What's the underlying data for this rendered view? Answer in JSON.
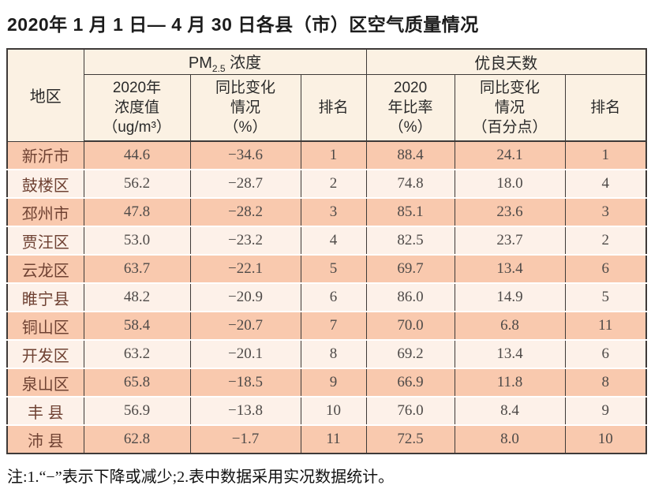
{
  "title": "2020年 1 月 1 日— 4 月 30 日各县（市）区空气质量情况",
  "table": {
    "col_region": "地区",
    "group_pm25": {
      "prefix": "PM",
      "sub": "2.5",
      "suffix": " 浓度"
    },
    "group_days": "优良天数",
    "sub_headers": [
      "2020年\n浓度值\n（ug/m³）",
      "同比变化\n情况\n（%）",
      "排名",
      "2020\n年比率\n（%）",
      "同比变化\n情况\n（百分点）",
      "排名"
    ],
    "rows": [
      {
        "region": "新沂市",
        "pm25_value": "44.6",
        "pm25_change": "−34.6",
        "pm25_rank": "1",
        "ratio": "88.4",
        "ratio_change": "24.1",
        "ratio_rank": "1"
      },
      {
        "region": "鼓楼区",
        "pm25_value": "56.2",
        "pm25_change": "−28.7",
        "pm25_rank": "2",
        "ratio": "74.8",
        "ratio_change": "18.0",
        "ratio_rank": "4"
      },
      {
        "region": "邳州市",
        "pm25_value": "47.8",
        "pm25_change": "−28.2",
        "pm25_rank": "3",
        "ratio": "85.1",
        "ratio_change": "23.6",
        "ratio_rank": "3"
      },
      {
        "region": "贾汪区",
        "pm25_value": "53.0",
        "pm25_change": "−23.2",
        "pm25_rank": "4",
        "ratio": "82.5",
        "ratio_change": "23.7",
        "ratio_rank": "2"
      },
      {
        "region": "云龙区",
        "pm25_value": "63.7",
        "pm25_change": "−22.1",
        "pm25_rank": "5",
        "ratio": "69.7",
        "ratio_change": "13.4",
        "ratio_rank": "6"
      },
      {
        "region": "睢宁县",
        "pm25_value": "48.2",
        "pm25_change": "−20.9",
        "pm25_rank": "6",
        "ratio": "86.0",
        "ratio_change": "14.9",
        "ratio_rank": "5"
      },
      {
        "region": "铜山区",
        "pm25_value": "58.4",
        "pm25_change": "−20.7",
        "pm25_rank": "7",
        "ratio": "70.0",
        "ratio_change": "6.8",
        "ratio_rank": "11"
      },
      {
        "region": "开发区",
        "pm25_value": "63.2",
        "pm25_change": "−20.1",
        "pm25_rank": "8",
        "ratio": "69.2",
        "ratio_change": "13.4",
        "ratio_rank": "6"
      },
      {
        "region": "泉山区",
        "pm25_value": "65.8",
        "pm25_change": "−18.5",
        "pm25_rank": "9",
        "ratio": "66.9",
        "ratio_change": "11.8",
        "ratio_rank": "8"
      },
      {
        "region": "丰 县",
        "pm25_value": "56.9",
        "pm25_change": "−13.8",
        "pm25_rank": "10",
        "ratio": "76.0",
        "ratio_change": "8.4",
        "ratio_rank": "9"
      },
      {
        "region": "沛 县",
        "pm25_value": "62.8",
        "pm25_change": "−1.7",
        "pm25_rank": "11",
        "ratio": "72.5",
        "ratio_change": "8.0",
        "ratio_rank": "10"
      }
    ]
  },
  "footnote": "注:1.“−”表示下降或减少;2.表中数据采用实况数据统计。",
  "colors": {
    "row_salmon": "#f9c9ae",
    "row_light": "#fdf1e9",
    "header_bg": "#fbf1e3",
    "border": "#3e3a38",
    "region_text": "#6f4233",
    "number_text": "#4e4a48"
  }
}
